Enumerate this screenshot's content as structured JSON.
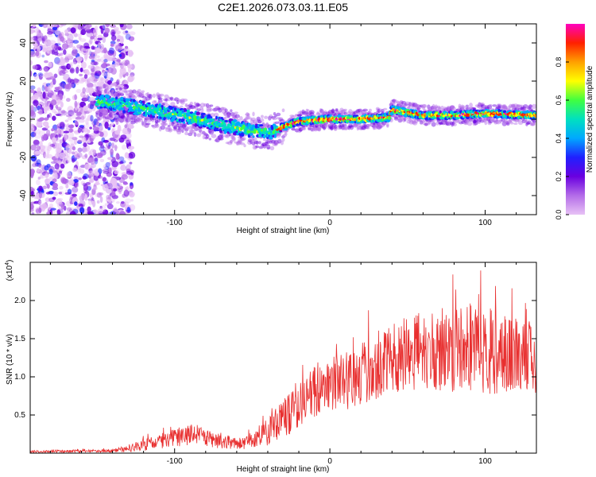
{
  "figure": {
    "title": "C2E1.2026.073.03.11.E05"
  },
  "chart_data": [
    {
      "type": "heatmap",
      "name": "spectrogram",
      "xlabel": "Height of straight line (km)",
      "ylabel": "Frequency (Hz)",
      "xlim": [
        -193,
        133
      ],
      "ylim": [
        -50,
        50
      ],
      "x_ticks": [
        -100,
        0,
        100
      ],
      "y_ticks": [
        -40,
        -20,
        0,
        20,
        40
      ],
      "x_tick_labels": [
        "-100",
        "0",
        "100"
      ],
      "y_tick_labels": [
        "-40",
        "-20",
        "0",
        "20",
        "40"
      ],
      "colormap": [
        "#e7c2f5",
        "#b46ce8",
        "#6a00e0",
        "#2020ff",
        "#00a8ff",
        "#00e0c0",
        "#40ff40",
        "#ffff00",
        "#ffa000",
        "#ff2000",
        "#ff00c0"
      ],
      "noise_region": {
        "x_from": -193,
        "x_to": -133
      },
      "ridge": [
        {
          "x": -145,
          "f": 9
        },
        {
          "x": -130,
          "f": 7
        },
        {
          "x": -110,
          "f": 4
        },
        {
          "x": -90,
          "f": 1
        },
        {
          "x": -70,
          "f": -3
        },
        {
          "x": -50,
          "f": -6
        },
        {
          "x": -38,
          "f": -7
        },
        {
          "x": -30,
          "f": -4
        },
        {
          "x": -20,
          "f": -1
        },
        {
          "x": 0,
          "f": 0
        },
        {
          "x": 20,
          "f": 0
        },
        {
          "x": 38,
          "f": 1
        },
        {
          "x": 40,
          "f": 5
        },
        {
          "x": 60,
          "f": 2
        },
        {
          "x": 80,
          "f": 2
        },
        {
          "x": 100,
          "f": 3
        },
        {
          "x": 133,
          "f": 2
        }
      ]
    },
    {
      "type": "colorbar",
      "label": "Normalized spectral amplitude",
      "range": [
        0,
        1
      ],
      "ticks": [
        "0.0",
        "0.2",
        "0.4",
        "0.6",
        "0.8"
      ],
      "tick_values": [
        0,
        0.2,
        0.4,
        0.6,
        0.8
      ]
    },
    {
      "type": "line",
      "name": "snr",
      "xlabel": "Height of straight line (km)",
      "ylabel": "SNR (10 * v/v)",
      "y_multiplier": "(x10",
      "y_multiplier_exp": "4",
      "y_multiplier_close": ")",
      "xlim": [
        -193,
        133
      ],
      "ylim": [
        0,
        2.5
      ],
      "x_ticks": [
        -100,
        0,
        100
      ],
      "x_tick_labels": [
        "-100",
        "0",
        "100"
      ],
      "y_ticks": [
        0.5,
        1.0,
        1.5,
        2.0
      ],
      "y_tick_labels": [
        "0.5",
        "1.0",
        "1.5",
        "2.0"
      ],
      "color": "#e83030",
      "envelope": [
        {
          "x": -193,
          "mean": 0.02,
          "amp": 0.015
        },
        {
          "x": -140,
          "mean": 0.03,
          "amp": 0.02
        },
        {
          "x": -120,
          "mean": 0.1,
          "amp": 0.08
        },
        {
          "x": -100,
          "mean": 0.2,
          "amp": 0.12
        },
        {
          "x": -90,
          "mean": 0.25,
          "amp": 0.14
        },
        {
          "x": -75,
          "mean": 0.17,
          "amp": 0.1
        },
        {
          "x": -55,
          "mean": 0.12,
          "amp": 0.08
        },
        {
          "x": -40,
          "mean": 0.28,
          "amp": 0.18
        },
        {
          "x": -30,
          "mean": 0.45,
          "amp": 0.25
        },
        {
          "x": -20,
          "mean": 0.65,
          "amp": 0.35
        },
        {
          "x": -5,
          "mean": 0.85,
          "amp": 0.35
        },
        {
          "x": 10,
          "mean": 0.95,
          "amp": 0.4
        },
        {
          "x": 30,
          "mean": 1.15,
          "amp": 0.45
        },
        {
          "x": 50,
          "mean": 1.3,
          "amp": 0.5
        },
        {
          "x": 70,
          "mean": 1.35,
          "amp": 0.55
        },
        {
          "x": 90,
          "mean": 1.4,
          "amp": 0.6
        },
        {
          "x": 110,
          "mean": 1.3,
          "amp": 0.55
        },
        {
          "x": 133,
          "mean": 1.25,
          "amp": 0.5
        }
      ]
    }
  ]
}
